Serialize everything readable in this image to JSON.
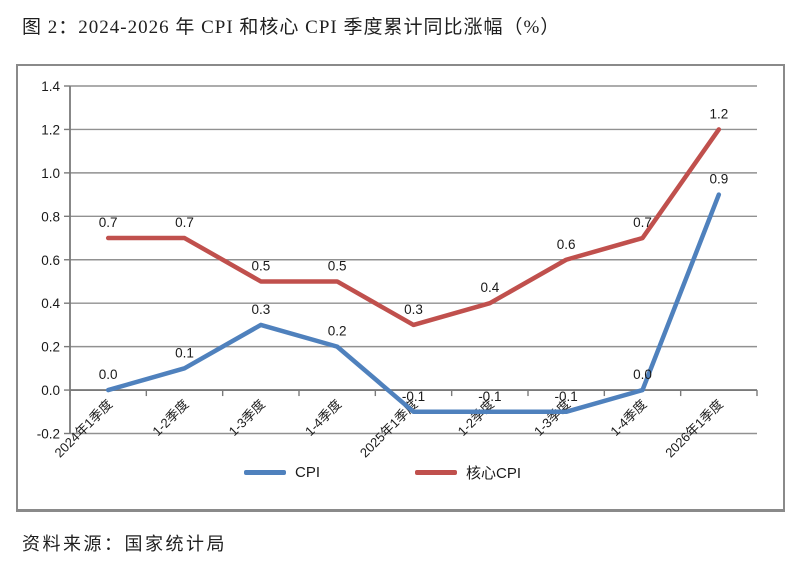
{
  "page": {
    "title": "图 2：2024-2026 年 CPI 和核心 CPI 季度累计同比涨幅（%）",
    "source": "资料来源：国家统计局"
  },
  "colors": {
    "cpi_line": "#4f81bd",
    "core_cpi_line": "#c0504d",
    "gridline": "#919191",
    "axis": "#7a7a7a",
    "chart_border": "#8a8a8a",
    "label_text": "#1a1a1a"
  },
  "chart_data": {
    "type": "line",
    "title": "",
    "categories": [
      "2024年1季度",
      "1-2季度",
      "1-3季度",
      "1-4季度",
      "2025年1季度",
      "1-2季度",
      "1-3季度",
      "1-4季度",
      "2026年1季度"
    ],
    "series": [
      {
        "name": "CPI",
        "color": "#4f81bd",
        "values": [
          0.0,
          0.1,
          0.3,
          0.2,
          -0.1,
          -0.1,
          -0.1,
          0.0,
          0.9
        ]
      },
      {
        "name": "核心CPI",
        "color": "#c0504d",
        "values": [
          0.7,
          0.7,
          0.5,
          0.5,
          0.3,
          0.4,
          0.6,
          0.7,
          1.2
        ]
      }
    ],
    "ylim": [
      -0.2,
      1.4
    ],
    "ytick_step": 0.2,
    "ytick_labels": [
      "1.4",
      "1.2",
      "1.0",
      "0.8",
      "0.6",
      "0.4",
      "0.2",
      "0.0",
      "-0.2"
    ],
    "grid": true,
    "data_labels": true,
    "x_labels_rotated_deg": 45,
    "legend_position": "bottom-center"
  }
}
